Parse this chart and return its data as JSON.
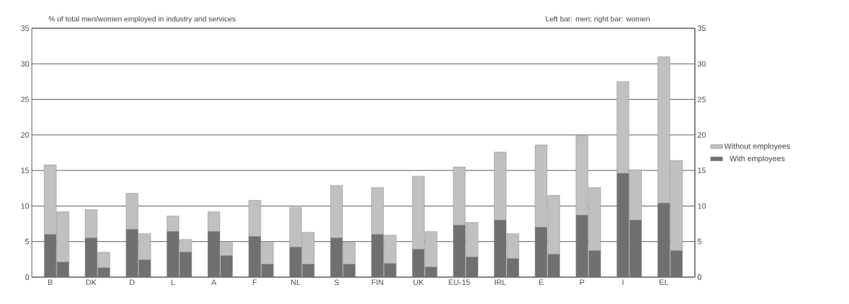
{
  "chart_data": {
    "type": "bar",
    "title": "% of total men/women employed in industry and services",
    "annotations": [
      "Left bar: men; right bar: women"
    ],
    "categories": [
      "B",
      null,
      "DK",
      null,
      "D",
      null,
      "L",
      null,
      "A",
      null,
      "F",
      null,
      "NL",
      null,
      "S",
      null,
      "FIN",
      null,
      "UK",
      null,
      "EU-15",
      null,
      "IRL",
      null,
      "E",
      null,
      "P",
      null,
      "I",
      null,
      "EL",
      null
    ],
    "stacked": true,
    "series": [
      {
        "name": "With employees",
        "color": "#707070",
        "values": [
          6.0,
          2.1,
          5.5,
          1.3,
          6.7,
          2.4,
          6.4,
          3.5,
          6.4,
          3.0,
          5.7,
          1.8,
          4.2,
          1.8,
          5.5,
          1.8,
          6.0,
          1.9,
          3.9,
          1.4,
          7.3,
          2.8,
          8.0,
          2.6,
          7.0,
          3.2,
          8.7,
          3.7,
          14.6,
          8.0,
          10.4,
          3.7
        ]
      },
      {
        "name": "Without employees",
        "color": "#c0c0c0",
        "values": [
          9.8,
          7.1,
          4.0,
          2.2,
          5.1,
          3.7,
          2.2,
          1.8,
          2.8,
          2.0,
          5.1,
          3.2,
          5.6,
          4.5,
          7.4,
          3.1,
          6.6,
          4.0,
          10.3,
          5.0,
          8.2,
          4.9,
          9.6,
          3.5,
          11.6,
          8.3,
          11.2,
          8.9,
          12.9,
          7.1,
          20.6,
          12.7
        ]
      }
    ],
    "ylim": [
      0,
      35
    ],
    "yticks": [
      0,
      5,
      10,
      15,
      20,
      25,
      30,
      35
    ],
    "y2lim": [
      0,
      35
    ],
    "y2ticks": [
      0,
      5,
      10,
      15,
      20,
      25,
      30,
      35
    ],
    "grid": "y",
    "legend": "right"
  }
}
